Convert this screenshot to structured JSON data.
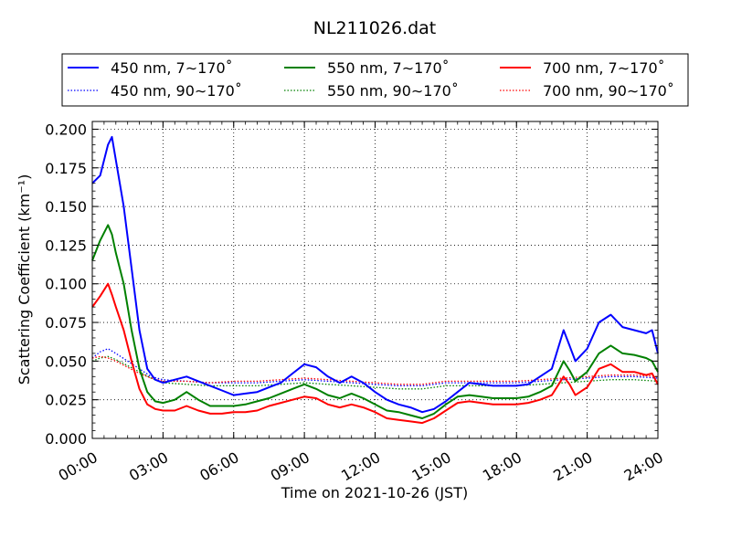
{
  "chart_data": {
    "type": "line",
    "title": "NL211026.dat",
    "xlabel": "Time on 2021-10-26 (JST)",
    "ylabel": "Scattering Coefficient (km⁻¹)",
    "xlim": [
      "00:00",
      "24:00"
    ],
    "ylim": [
      0.0,
      0.205
    ],
    "x_ticks": [
      "00:00",
      "03:00",
      "06:00",
      "09:00",
      "12:00",
      "15:00",
      "18:00",
      "21:00",
      "24:00"
    ],
    "y_ticks": [
      "0.000",
      "0.025",
      "0.050",
      "0.075",
      "0.100",
      "0.125",
      "0.150",
      "0.175",
      "0.200"
    ],
    "grid": true,
    "legend_position": "top",
    "series": [
      {
        "name": "450 nm, 7∼170˚",
        "color": "#0000ff",
        "style": "solid",
        "x": [
          "00:00",
          "00:20",
          "00:40",
          "00:50",
          "01:00",
          "01:20",
          "01:40",
          "02:00",
          "02:20",
          "02:40",
          "03:00",
          "03:30",
          "04:00",
          "04:30",
          "05:00",
          "05:30",
          "06:00",
          "06:30",
          "07:00",
          "07:30",
          "08:00",
          "08:30",
          "09:00",
          "09:30",
          "10:00",
          "10:30",
          "11:00",
          "11:30",
          "12:00",
          "12:30",
          "13:00",
          "13:30",
          "14:00",
          "14:30",
          "15:00",
          "15:30",
          "16:00",
          "16:30",
          "17:00",
          "17:30",
          "18:00",
          "18:30",
          "19:00",
          "19:30",
          "20:00",
          "20:15",
          "20:30",
          "21:00",
          "21:30",
          "22:00",
          "22:30",
          "23:00",
          "23:30",
          "23:45",
          "24:00"
        ],
        "y": [
          0.165,
          0.17,
          0.19,
          0.195,
          0.18,
          0.15,
          0.11,
          0.07,
          0.045,
          0.038,
          0.036,
          0.038,
          0.04,
          0.037,
          0.034,
          0.031,
          0.028,
          0.029,
          0.03,
          0.033,
          0.036,
          0.042,
          0.048,
          0.046,
          0.04,
          0.036,
          0.04,
          0.036,
          0.03,
          0.025,
          0.022,
          0.02,
          0.017,
          0.019,
          0.024,
          0.03,
          0.036,
          0.035,
          0.034,
          0.034,
          0.034,
          0.035,
          0.04,
          0.045,
          0.07,
          0.06,
          0.05,
          0.058,
          0.075,
          0.08,
          0.072,
          0.07,
          0.068,
          0.07,
          0.055
        ]
      },
      {
        "name": "550 nm, 7∼170˚",
        "color": "#008000",
        "style": "solid",
        "x": [
          "00:00",
          "00:20",
          "00:40",
          "00:50",
          "01:00",
          "01:20",
          "01:40",
          "02:00",
          "02:20",
          "02:40",
          "03:00",
          "03:30",
          "04:00",
          "04:30",
          "05:00",
          "05:30",
          "06:00",
          "06:30",
          "07:00",
          "07:30",
          "08:00",
          "08:30",
          "09:00",
          "09:30",
          "10:00",
          "10:30",
          "11:00",
          "11:30",
          "12:00",
          "12:30",
          "13:00",
          "13:30",
          "14:00",
          "14:30",
          "15:00",
          "15:30",
          "16:00",
          "16:30",
          "17:00",
          "17:30",
          "18:00",
          "18:30",
          "19:00",
          "19:30",
          "20:00",
          "20:15",
          "20:30",
          "21:00",
          "21:30",
          "22:00",
          "22:30",
          "23:00",
          "23:30",
          "23:45",
          "24:00"
        ],
        "y": [
          0.115,
          0.128,
          0.138,
          0.132,
          0.12,
          0.1,
          0.07,
          0.045,
          0.03,
          0.024,
          0.023,
          0.025,
          0.03,
          0.025,
          0.021,
          0.021,
          0.021,
          0.022,
          0.024,
          0.026,
          0.029,
          0.032,
          0.035,
          0.032,
          0.028,
          0.026,
          0.029,
          0.026,
          0.022,
          0.018,
          0.017,
          0.015,
          0.013,
          0.016,
          0.022,
          0.027,
          0.028,
          0.027,
          0.026,
          0.026,
          0.026,
          0.027,
          0.03,
          0.034,
          0.05,
          0.044,
          0.037,
          0.043,
          0.055,
          0.06,
          0.055,
          0.054,
          0.052,
          0.05,
          0.043
        ]
      },
      {
        "name": "700 nm, 7∼170˚",
        "color": "#ff0000",
        "style": "solid",
        "x": [
          "00:00",
          "00:20",
          "00:40",
          "00:50",
          "01:00",
          "01:20",
          "01:40",
          "02:00",
          "02:20",
          "02:40",
          "03:00",
          "03:30",
          "04:00",
          "04:30",
          "05:00",
          "05:30",
          "06:00",
          "06:30",
          "07:00",
          "07:30",
          "08:00",
          "08:30",
          "09:00",
          "09:30",
          "10:00",
          "10:30",
          "11:00",
          "11:30",
          "12:00",
          "12:30",
          "13:00",
          "13:30",
          "14:00",
          "14:30",
          "15:00",
          "15:30",
          "16:00",
          "16:30",
          "17:00",
          "17:30",
          "18:00",
          "18:30",
          "19:00",
          "19:30",
          "20:00",
          "20:15",
          "20:30",
          "21:00",
          "21:30",
          "22:00",
          "22:30",
          "23:00",
          "23:30",
          "23:45",
          "24:00"
        ],
        "y": [
          0.085,
          0.092,
          0.1,
          0.093,
          0.085,
          0.07,
          0.05,
          0.032,
          0.022,
          0.019,
          0.018,
          0.018,
          0.021,
          0.018,
          0.016,
          0.016,
          0.017,
          0.017,
          0.018,
          0.021,
          0.023,
          0.025,
          0.027,
          0.026,
          0.022,
          0.02,
          0.022,
          0.02,
          0.017,
          0.013,
          0.012,
          0.011,
          0.01,
          0.013,
          0.018,
          0.023,
          0.024,
          0.023,
          0.022,
          0.022,
          0.022,
          0.023,
          0.025,
          0.028,
          0.04,
          0.035,
          0.028,
          0.033,
          0.045,
          0.048,
          0.043,
          0.043,
          0.041,
          0.042,
          0.035
        ]
      },
      {
        "name": "450 nm, 90∼170˚",
        "color": "#0000ff",
        "style": "dotted",
        "x": [
          "00:00",
          "00:20",
          "00:40",
          "01:00",
          "01:30",
          "02:00",
          "02:30",
          "03:00",
          "04:00",
          "05:00",
          "06:00",
          "07:00",
          "08:00",
          "09:00",
          "10:00",
          "11:00",
          "12:00",
          "13:00",
          "14:00",
          "15:00",
          "16:00",
          "17:00",
          "18:00",
          "19:00",
          "20:00",
          "21:00",
          "22:00",
          "23:00",
          "24:00"
        ],
        "y": [
          0.052,
          0.056,
          0.058,
          0.055,
          0.05,
          0.045,
          0.04,
          0.038,
          0.037,
          0.036,
          0.036,
          0.036,
          0.037,
          0.038,
          0.037,
          0.036,
          0.035,
          0.034,
          0.034,
          0.036,
          0.036,
          0.036,
          0.036,
          0.037,
          0.038,
          0.039,
          0.04,
          0.04,
          0.039
        ]
      },
      {
        "name": "550 nm, 90∼170˚",
        "color": "#008000",
        "style": "dotted",
        "x": [
          "00:00",
          "00:20",
          "00:40",
          "01:00",
          "01:30",
          "02:00",
          "02:30",
          "03:00",
          "04:00",
          "05:00",
          "06:00",
          "07:00",
          "08:00",
          "09:00",
          "10:00",
          "11:00",
          "12:00",
          "13:00",
          "14:00",
          "15:00",
          "16:00",
          "17:00",
          "18:00",
          "19:00",
          "20:00",
          "21:00",
          "22:00",
          "23:00",
          "24:00"
        ],
        "y": [
          0.05,
          0.052,
          0.053,
          0.051,
          0.047,
          0.043,
          0.039,
          0.036,
          0.035,
          0.034,
          0.034,
          0.034,
          0.035,
          0.036,
          0.035,
          0.034,
          0.033,
          0.032,
          0.032,
          0.034,
          0.034,
          0.034,
          0.034,
          0.035,
          0.036,
          0.037,
          0.038,
          0.038,
          0.037
        ]
      },
      {
        "name": "700 nm, 90∼170˚",
        "color": "#ff0000",
        "style": "dotted",
        "x": [
          "00:00",
          "00:20",
          "00:40",
          "01:00",
          "01:30",
          "02:00",
          "02:30",
          "03:00",
          "04:00",
          "05:00",
          "06:00",
          "07:00",
          "08:00",
          "09:00",
          "10:00",
          "11:00",
          "12:00",
          "13:00",
          "14:00",
          "15:00",
          "16:00",
          "17:00",
          "18:00",
          "19:00",
          "20:00",
          "21:00",
          "22:00",
          "23:00",
          "24:00"
        ],
        "y": [
          0.052,
          0.053,
          0.052,
          0.05,
          0.046,
          0.042,
          0.039,
          0.037,
          0.037,
          0.036,
          0.037,
          0.037,
          0.038,
          0.039,
          0.038,
          0.037,
          0.036,
          0.035,
          0.035,
          0.037,
          0.037,
          0.037,
          0.037,
          0.038,
          0.039,
          0.04,
          0.041,
          0.041,
          0.04
        ]
      }
    ]
  }
}
